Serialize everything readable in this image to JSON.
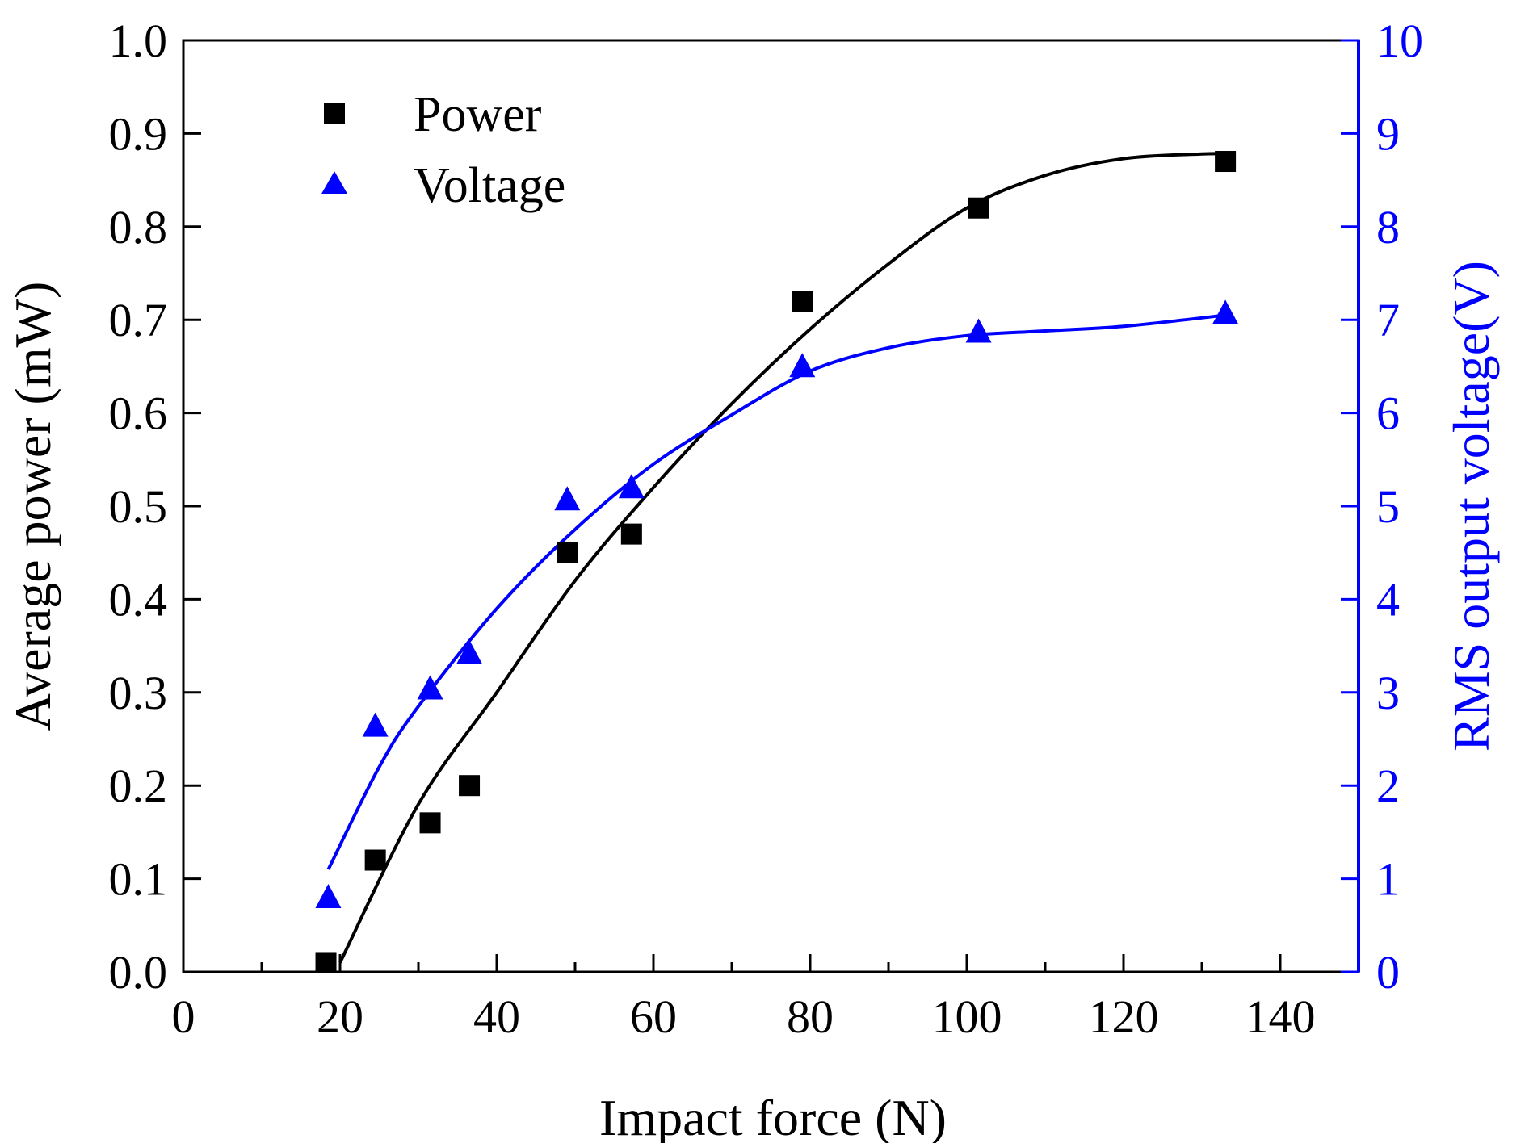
{
  "chart_data": {
    "type": "scatter",
    "title": "",
    "xlabel": "Impact force (N)",
    "ylabel_left": "Average power (mW)",
    "ylabel_right": "RMS output voltage(V)",
    "xlim": [
      0,
      150
    ],
    "xticks": [
      0,
      20,
      40,
      60,
      80,
      100,
      120,
      140
    ],
    "ylim_left": [
      0.0,
      1.0
    ],
    "yticks_left": [
      "0.0",
      "0.1",
      "0.2",
      "0.3",
      "0.4",
      "0.5",
      "0.6",
      "0.7",
      "0.8",
      "0.9",
      "1.0"
    ],
    "ylim_right": [
      0,
      10
    ],
    "yticks_right": [
      "0",
      "1",
      "2",
      "3",
      "4",
      "5",
      "6",
      "7",
      "8",
      "9",
      "10"
    ],
    "grid": false,
    "legend_position": "top-left",
    "series": [
      {
        "name": "Power",
        "axis": "left",
        "marker": "square",
        "color": "#000000",
        "x": [
          18.2,
          24.5,
          31.5,
          36.5,
          49,
          57.2,
          79,
          101.5,
          133
        ],
        "y": [
          0.01,
          0.12,
          0.16,
          0.2,
          0.45,
          0.47,
          0.72,
          0.82,
          0.87
        ],
        "fit_x": [
          20,
          30,
          40,
          50,
          60,
          70,
          80,
          90,
          100,
          110,
          120,
          130,
          133
        ],
        "fit_y": [
          0.01,
          0.18,
          0.3,
          0.42,
          0.52,
          0.61,
          0.69,
          0.76,
          0.82,
          0.855,
          0.873,
          0.878,
          0.878
        ]
      },
      {
        "name": "Voltage",
        "axis": "right",
        "marker": "triangle",
        "color": "#0000ff",
        "x": [
          18.5,
          24.5,
          31.5,
          36.5,
          49,
          57.2,
          79,
          101.5,
          133
        ],
        "y": [
          0.78,
          2.62,
          3.02,
          3.4,
          5.05,
          5.18,
          6.48,
          6.85,
          7.05
        ],
        "fit_x": [
          18.5,
          25,
          30,
          40,
          50,
          60,
          70,
          80,
          90,
          100,
          110,
          120,
          133
        ],
        "fit_y": [
          1.1,
          2.2,
          2.85,
          3.9,
          4.75,
          5.45,
          5.98,
          6.45,
          6.7,
          6.83,
          6.88,
          6.93,
          7.05
        ]
      }
    ]
  }
}
